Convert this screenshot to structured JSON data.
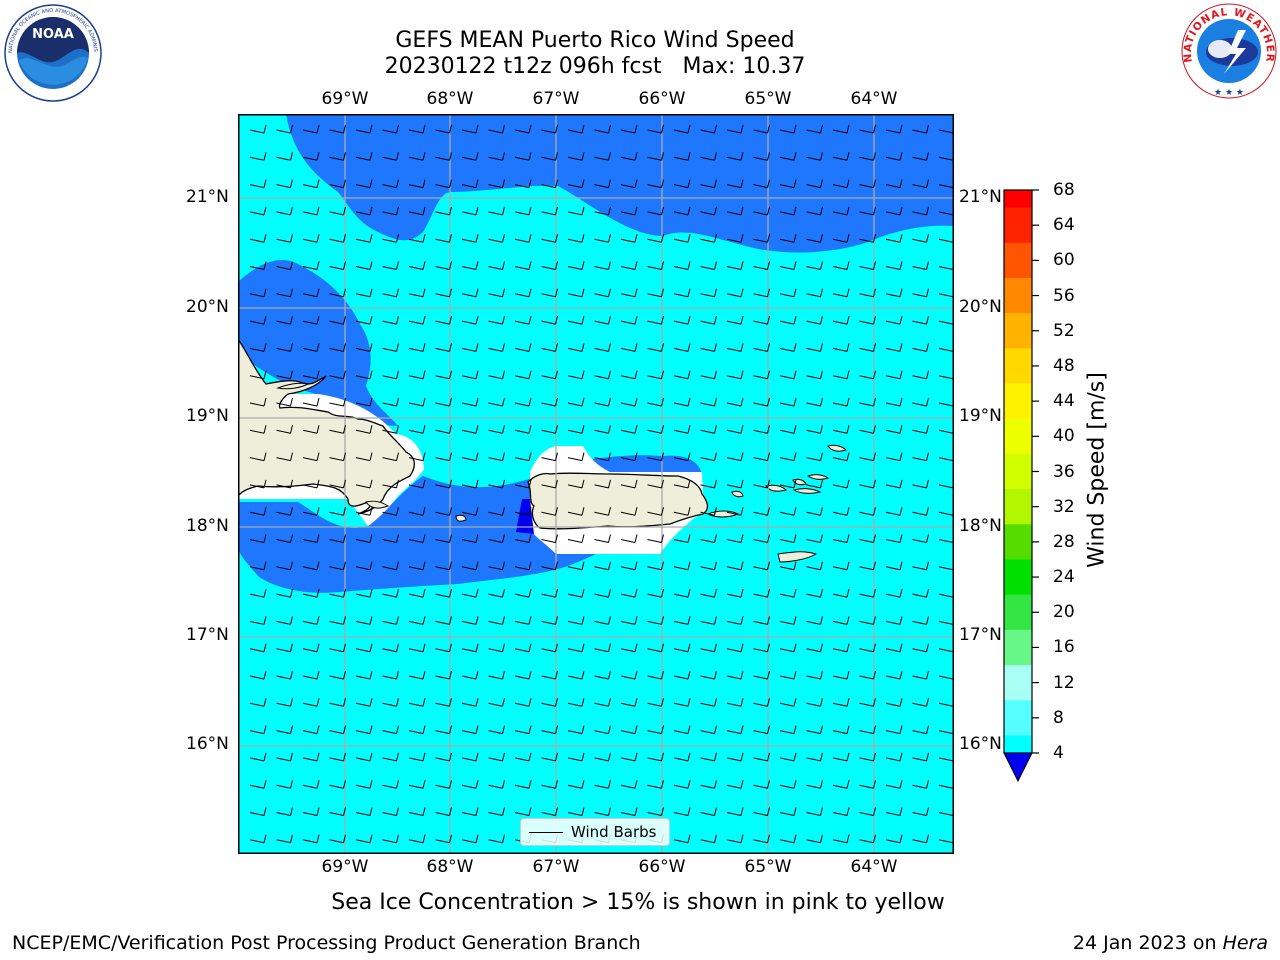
{
  "title": {
    "line1": "GEFS MEAN Puerto Rico Wind Speed",
    "line2": "20230122 t12z 096h fcst   Max: 10.37"
  },
  "logos": {
    "left": "NOAA",
    "left_ring": "NATIONAL OCEANIC AND ATMOSPHERIC ADMINISTRATION · U.S. DEPARTMENT OF COMMERCE",
    "right_ring": "NATIONAL WEATHER SERVICE"
  },
  "map": {
    "lon_labels": [
      "69°W",
      "68°W",
      "67°W",
      "66°W",
      "65°W",
      "64°W"
    ],
    "lat_labels": [
      "21°N",
      "20°N",
      "19°N",
      "18°N",
      "17°N",
      "16°N"
    ],
    "legend_label": "Wind Barbs"
  },
  "colorbar": {
    "title": "Wind Speed [m/s]",
    "ticks": [
      "68",
      "64",
      "60",
      "56",
      "52",
      "48",
      "44",
      "40",
      "36",
      "32",
      "28",
      "24",
      "20",
      "16",
      "12",
      "8",
      "4"
    ],
    "colors": [
      "#ff0000",
      "#ff2200",
      "#ff5500",
      "#ff8800",
      "#ffb300",
      "#ffd800",
      "#fff200",
      "#eeff00",
      "#d2ff00",
      "#b2f600",
      "#55dd00",
      "#00e000",
      "#33e644",
      "#66f788",
      "#a8fff4",
      "#55ffff",
      "#00ffff",
      "#0077ff"
    ],
    "extend_color": "#0000ee"
  },
  "footnote": "Sea Ice Concentration > 15% is shown in pink to yellow",
  "credit": "NCEP/EMC/Verification Post Processing Product Generation Branch",
  "date": {
    "text": "24 Jan 2023 on",
    "host": "Hera"
  }
}
